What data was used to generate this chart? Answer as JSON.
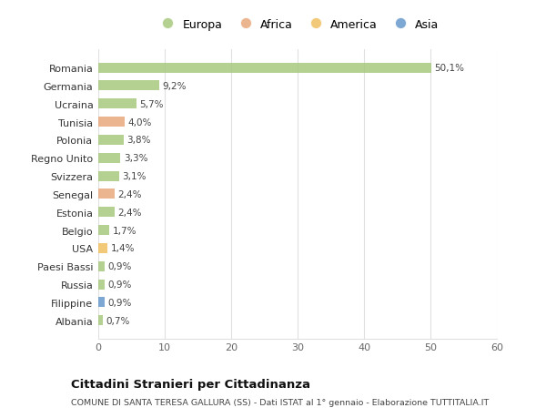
{
  "countries": [
    "Romania",
    "Germania",
    "Ucraina",
    "Tunisia",
    "Polonia",
    "Regno Unito",
    "Svizzera",
    "Senegal",
    "Estonia",
    "Belgio",
    "USA",
    "Paesi Bassi",
    "Russia",
    "Filippine",
    "Albania"
  ],
  "values": [
    50.1,
    9.2,
    5.7,
    4.0,
    3.8,
    3.3,
    3.1,
    2.4,
    2.4,
    1.7,
    1.4,
    0.9,
    0.9,
    0.9,
    0.7
  ],
  "labels": [
    "50,1%",
    "9,2%",
    "5,7%",
    "4,0%",
    "3,8%",
    "3,3%",
    "3,1%",
    "2,4%",
    "2,4%",
    "1,7%",
    "1,4%",
    "0,9%",
    "0,9%",
    "0,9%",
    "0,7%"
  ],
  "continents": [
    "Europa",
    "Europa",
    "Europa",
    "Africa",
    "Europa",
    "Europa",
    "Europa",
    "Africa",
    "Europa",
    "Europa",
    "America",
    "Europa",
    "Europa",
    "Asia",
    "Europa"
  ],
  "continent_colors": {
    "Europa": "#a8c97f",
    "Africa": "#e8a87c",
    "America": "#f0c060",
    "Asia": "#6699cc"
  },
  "legend_order": [
    "Europa",
    "Africa",
    "America",
    "Asia"
  ],
  "title": "Cittadini Stranieri per Cittadinanza",
  "subtitle": "COMUNE DI SANTA TERESA GALLURA (SS) - Dati ISTAT al 1° gennaio - Elaborazione TUTTITALIA.IT",
  "xlim": [
    0,
    60
  ],
  "xticks": [
    0,
    10,
    20,
    30,
    40,
    50,
    60
  ],
  "background_color": "#ffffff",
  "grid_color": "#e0e0e0",
  "bar_height": 0.55
}
